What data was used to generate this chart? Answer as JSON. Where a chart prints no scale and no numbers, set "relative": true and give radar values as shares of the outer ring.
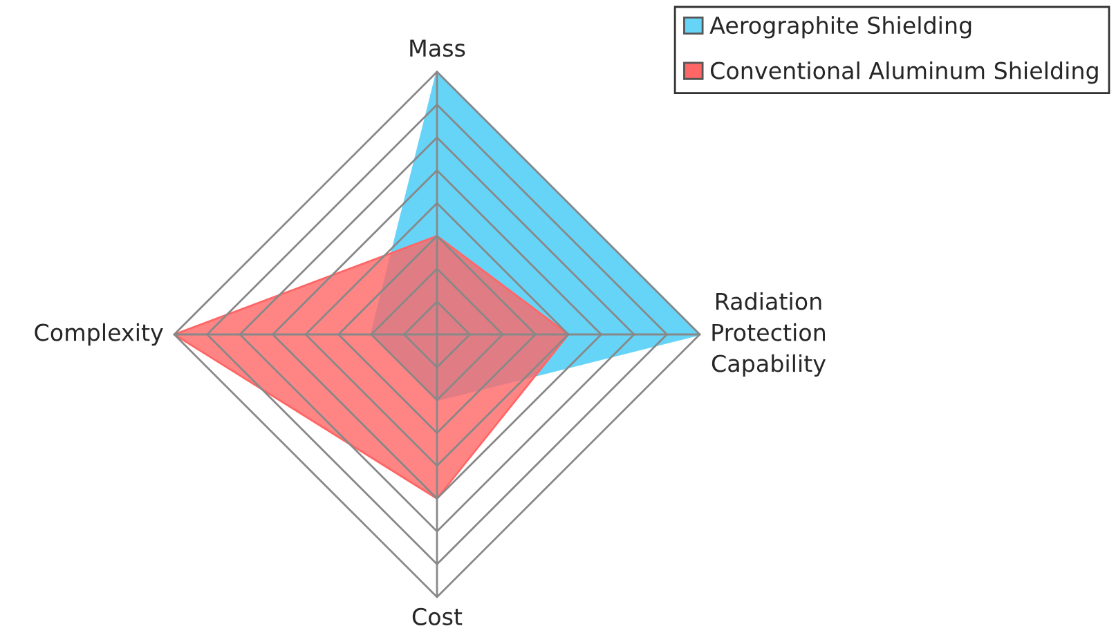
{
  "chart_data": {
    "type": "radar",
    "relative": true,
    "grid": true,
    "legend": "top right",
    "categories": [
      "Mass",
      "Radiation Protection Capability",
      "Cost",
      "Complexity"
    ],
    "series": [
      {
        "name": "Aerographite Shielding",
        "color": "#66d4f7",
        "values": [
          1.0,
          1.0,
          0.25,
          0.25
        ]
      },
      {
        "name": "Conventional Aluminum Shielding",
        "color": "#ff6666",
        "values": [
          0.375,
          0.5,
          0.625,
          1.0
        ]
      }
    ]
  }
}
